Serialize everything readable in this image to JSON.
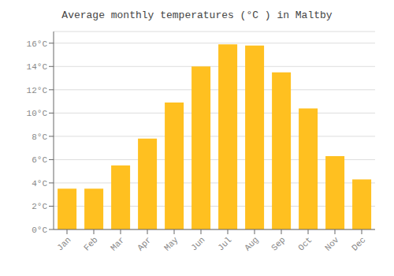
{
  "chart_data": {
    "type": "bar",
    "title": "Average monthly temperatures (°C ) in Maltby",
    "categories": [
      "Jan",
      "Feb",
      "Mar",
      "Apr",
      "May",
      "Jun",
      "Jul",
      "Aug",
      "Sep",
      "Oct",
      "Nov",
      "Dec"
    ],
    "values": [
      3.5,
      3.5,
      5.5,
      7.8,
      10.9,
      14.0,
      15.9,
      15.8,
      13.5,
      10.4,
      6.3,
      4.3
    ],
    "color": "#FFC020",
    "ylim": [
      0,
      17
    ],
    "yticks": [
      {
        "value": 0,
        "label": "0°C"
      },
      {
        "value": 2,
        "label": "2°C"
      },
      {
        "value": 4,
        "label": "4°C"
      },
      {
        "value": 6,
        "label": "6°C"
      },
      {
        "value": 8,
        "label": "8°C"
      },
      {
        "value": 10,
        "label": "10°C"
      },
      {
        "value": 12,
        "label": "12°C"
      },
      {
        "value": 14,
        "label": "14°C"
      },
      {
        "value": 16,
        "label": "16°C"
      }
    ],
    "grid": true
  }
}
